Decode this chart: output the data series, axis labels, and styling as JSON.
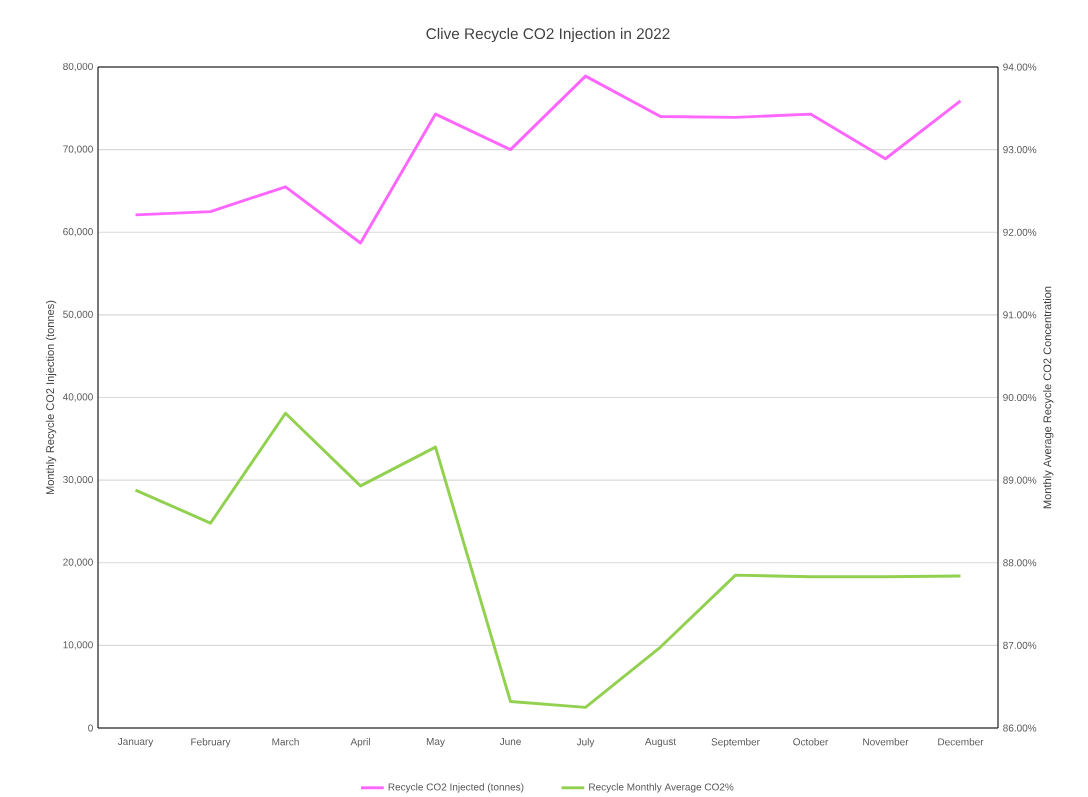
{
  "chart_data": {
    "type": "line",
    "title": "Clive Recycle CO2 Injection in 2022",
    "ylabel": "Monthly Recycle CO2 Injection (tonnes)",
    "y2label": "Monthly Average Recycle CO2 Concentration",
    "categories": [
      "January",
      "February",
      "March",
      "April",
      "May",
      "June",
      "July",
      "August",
      "September",
      "October",
      "November",
      "December"
    ],
    "series": [
      {
        "name": "Recycle CO2 Injected (tonnes)",
        "color": "#ff66ff",
        "values": [
          62100,
          62500,
          65500,
          58700,
          74300,
          70000,
          78900,
          74000,
          73900,
          74300,
          68900,
          75900
        ]
      },
      {
        "name": "Recycle Monthly Average CO2%",
        "color": "#92d050",
        "axis": "y2",
        "values": [
          88.88,
          88.48,
          89.81,
          88.93,
          89.4,
          86.32,
          86.25,
          86.98,
          87.85,
          87.83,
          87.83,
          87.84
        ]
      }
    ],
    "ylim": [
      0,
      80000
    ],
    "yticks": [
      {
        "value": 0,
        "label": "0"
      },
      {
        "value": 10000,
        "label": "10,000"
      },
      {
        "value": 20000,
        "label": "20,000"
      },
      {
        "value": 30000,
        "label": "30,000"
      },
      {
        "value": 40000,
        "label": "40,000"
      },
      {
        "value": 50000,
        "label": "50,000"
      },
      {
        "value": 60000,
        "label": "60,000"
      },
      {
        "value": 70000,
        "label": "70,000"
      },
      {
        "value": 80000,
        "label": "80,000"
      }
    ],
    "y2lim": [
      86,
      94
    ],
    "y2ticks": [
      {
        "value": 86,
        "label": "86.00%"
      },
      {
        "value": 87,
        "label": "87.00%"
      },
      {
        "value": 88,
        "label": "88.00%"
      },
      {
        "value": 89,
        "label": "89.00%"
      },
      {
        "value": 90,
        "label": "90.00%"
      },
      {
        "value": 91,
        "label": "91.00%"
      },
      {
        "value": 92,
        "label": "92.00%"
      },
      {
        "value": 93,
        "label": "93.00%"
      },
      {
        "value": 94,
        "label": "94.00%"
      }
    ],
    "grid": "y",
    "legend": "bottom"
  }
}
